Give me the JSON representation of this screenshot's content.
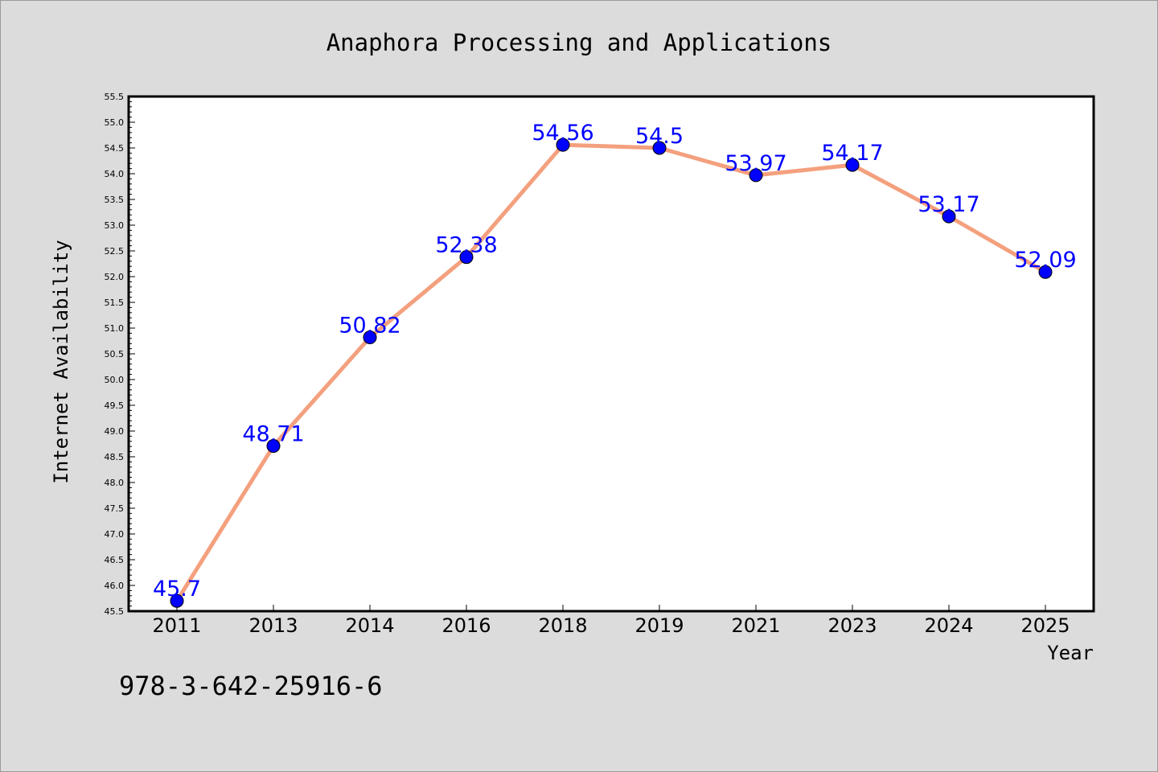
{
  "chart_data": {
    "type": "line",
    "title": "Anaphora Processing and Applications",
    "xlabel": "Year",
    "ylabel": "Internet Availability",
    "categories": [
      "2011",
      "2013",
      "2014",
      "2016",
      "2018",
      "2019",
      "2021",
      "2023",
      "2024",
      "2025"
    ],
    "series": [
      {
        "values": [
          45.7,
          48.71,
          50.82,
          52.38,
          54.56,
          54.5,
          53.97,
          54.17,
          53.17,
          52.09
        ]
      }
    ],
    "data_labels": [
      "45.7",
      "48.71",
      "50.82",
      "52.38",
      "54.56",
      "54.5",
      "53.97",
      "54.17",
      "53.17",
      "52.09"
    ],
    "ylim": [
      45.5,
      55.5
    ],
    "yticks": [
      "45.5",
      "46.0",
      "46.5",
      "47.0",
      "47.5",
      "48.0",
      "48.5",
      "49.0",
      "49.5",
      "50.0",
      "50.5",
      "51.0",
      "51.5",
      "52.0",
      "52.5",
      "53.0",
      "53.5",
      "54.0",
      "54.5",
      "55.0",
      "55.5"
    ],
    "grid": false,
    "colors": {
      "line": "#f4a07e",
      "marker": "#0000ff",
      "label": "#0000ff",
      "background": "#dcdcdc",
      "plot_background": "#ffffff"
    }
  },
  "footer": {
    "isbn": "978-3-642-25916-6"
  }
}
